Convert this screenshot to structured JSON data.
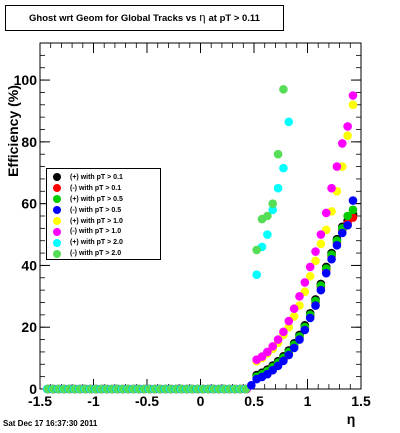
{
  "title": {
    "prefix": "Ghost wrt Geom for Global Tracks vs",
    "symbol": "η",
    "suffix": "at pT > 0.11"
  },
  "timestamp": "Sat Dec 17 16:37:30 2011",
  "chart_data": {
    "type": "scatter",
    "xlabel": "η",
    "ylabel": "Efficiency (%)",
    "xlim": [
      -1.5,
      1.5
    ],
    "ylim": [
      0,
      112
    ],
    "x_ticks": [
      -1.5,
      -1,
      -0.5,
      0,
      0.5,
      1,
      1.5
    ],
    "x_tick_labels": [
      "-1.5",
      "-1",
      "-0.5",
      "0",
      "0.5",
      "1",
      "1.5"
    ],
    "y_ticks": [
      0,
      20,
      40,
      60,
      80,
      100
    ],
    "y_tick_labels": [
      "0",
      "20",
      "40",
      "60",
      "80",
      "100"
    ],
    "legend_position": "left",
    "series": [
      {
        "name": "(+) with pT > 0.1",
        "color": "#000000",
        "points": [
          [
            0.525,
            4.5
          ],
          [
            0.575,
            5.3
          ],
          [
            0.625,
            6.3
          ],
          [
            0.675,
            7.6
          ],
          [
            0.725,
            9.0
          ],
          [
            0.775,
            10.6
          ],
          [
            0.825,
            12.5
          ],
          [
            0.875,
            14.8
          ],
          [
            0.925,
            17.5
          ],
          [
            0.975,
            20.6
          ],
          [
            1.025,
            24.5
          ],
          [
            1.075,
            29.0
          ],
          [
            1.125,
            34.0
          ],
          [
            1.175,
            39.5
          ],
          [
            1.225,
            44.0
          ],
          [
            1.275,
            48.5
          ],
          [
            1.325,
            52.5
          ],
          [
            1.375,
            54.5
          ],
          [
            1.425,
            56.5
          ]
        ]
      },
      {
        "name": "(-) with pT > 0.1",
        "color": "#ff0000",
        "points": [
          [
            0.525,
            3.6
          ],
          [
            0.575,
            4.4
          ],
          [
            0.625,
            5.3
          ],
          [
            0.675,
            6.6
          ],
          [
            0.725,
            8.0
          ],
          [
            0.775,
            9.6
          ],
          [
            0.825,
            11.6
          ],
          [
            0.875,
            13.8
          ],
          [
            0.925,
            16.5
          ],
          [
            0.975,
            19.6
          ],
          [
            1.025,
            23.5
          ],
          [
            1.075,
            28.0
          ],
          [
            1.125,
            33.0
          ],
          [
            1.175,
            38.5
          ],
          [
            1.225,
            43.0
          ],
          [
            1.275,
            47.5
          ],
          [
            1.325,
            51.5
          ],
          [
            1.375,
            53.5
          ],
          [
            1.425,
            55.5
          ]
        ]
      },
      {
        "name": "(+) with pT > 0.5",
        "color": "#00cc00",
        "points": [
          [
            0.525,
            4.0
          ],
          [
            0.575,
            4.8
          ],
          [
            0.625,
            5.8
          ],
          [
            0.675,
            7.1
          ],
          [
            0.725,
            8.5
          ],
          [
            0.775,
            10.1
          ],
          [
            0.825,
            12.0
          ],
          [
            0.875,
            14.3
          ],
          [
            0.925,
            17.0
          ],
          [
            0.975,
            20.1
          ],
          [
            1.025,
            24.0
          ],
          [
            1.075,
            28.5
          ],
          [
            1.125,
            33.5
          ],
          [
            1.175,
            39.0
          ],
          [
            1.225,
            43.5
          ],
          [
            1.275,
            48.0
          ],
          [
            1.325,
            52.0
          ],
          [
            1.375,
            56.0
          ],
          [
            1.425,
            58.0
          ]
        ]
      },
      {
        "name": "(-) with pT > 0.5",
        "color": "#0000ff",
        "points": [
          [
            0.475,
            1.2
          ],
          [
            0.525,
            3.2
          ],
          [
            0.575,
            3.9
          ],
          [
            0.625,
            4.8
          ],
          [
            0.675,
            6.1
          ],
          [
            0.725,
            7.5
          ],
          [
            0.775,
            9.1
          ],
          [
            0.825,
            11.0
          ],
          [
            0.875,
            13.3
          ],
          [
            0.925,
            16.0
          ],
          [
            0.975,
            19.1
          ],
          [
            1.025,
            23.0
          ],
          [
            1.075,
            27.0
          ],
          [
            1.125,
            32.0
          ],
          [
            1.175,
            37.5
          ],
          [
            1.225,
            42.0
          ],
          [
            1.275,
            46.5
          ],
          [
            1.325,
            50.5
          ],
          [
            1.375,
            53.0
          ],
          [
            1.425,
            61.0
          ]
        ]
      },
      {
        "name": "(+) with pT > 1.0",
        "color": "#ffff00",
        "points": [
          [
            0.525,
            9.0
          ],
          [
            0.575,
            10.0
          ],
          [
            0.625,
            11.5
          ],
          [
            0.675,
            13.0
          ],
          [
            0.725,
            15.0
          ],
          [
            0.775,
            17.5
          ],
          [
            0.825,
            20.0
          ],
          [
            0.875,
            23.5
          ],
          [
            0.925,
            27.0
          ],
          [
            0.975,
            31.5
          ],
          [
            1.025,
            36.5
          ],
          [
            1.075,
            41.5
          ],
          [
            1.125,
            47.0
          ],
          [
            1.175,
            51.5
          ],
          [
            1.225,
            57.5
          ],
          [
            1.275,
            64.0
          ],
          [
            1.325,
            72.0
          ],
          [
            1.375,
            82.0
          ],
          [
            1.425,
            92.0
          ]
        ]
      },
      {
        "name": "(-) with pT > 1.0",
        "color": "#ff00ff",
        "points": [
          [
            0.525,
            9.5
          ],
          [
            0.575,
            10.5
          ],
          [
            0.625,
            12.0
          ],
          [
            0.675,
            13.8
          ],
          [
            0.725,
            16.0
          ],
          [
            0.775,
            18.5
          ],
          [
            0.825,
            22.0
          ],
          [
            0.875,
            26.0
          ],
          [
            0.925,
            30.0
          ],
          [
            0.975,
            34.5
          ],
          [
            1.025,
            39.5
          ],
          [
            1.075,
            44.5
          ],
          [
            1.125,
            50.0
          ],
          [
            1.175,
            57.0
          ],
          [
            1.225,
            65.0
          ],
          [
            1.275,
            72.0
          ],
          [
            1.325,
            79.5
          ],
          [
            1.375,
            85.0
          ],
          [
            1.425,
            95.0
          ]
        ]
      },
      {
        "name": "(+) with pT > 2.0",
        "color": "#00ffff",
        "points": [
          [
            0.525,
            37.0
          ],
          [
            0.575,
            46.0
          ],
          [
            0.625,
            50.0
          ],
          [
            0.675,
            58.0
          ],
          [
            0.725,
            65.0
          ],
          [
            0.775,
            71.5
          ],
          [
            0.825,
            86.5
          ]
        ]
      },
      {
        "name": "(-) with pT > 2.0",
        "color": "#55dd55",
        "points": [
          [
            0.525,
            45.0
          ],
          [
            0.575,
            55.0
          ],
          [
            0.625,
            56.0
          ],
          [
            0.675,
            60.0
          ],
          [
            0.725,
            76.0
          ],
          [
            0.775,
            97.0
          ]
        ]
      }
    ],
    "zero_band": {
      "x": [
        -1.425,
        -1.375,
        -1.325,
        -1.275,
        -1.225,
        -1.175,
        -1.125,
        -1.075,
        -1.025,
        -0.975,
        -0.925,
        -0.875,
        -0.825,
        -0.775,
        -0.725,
        -0.675,
        -0.625,
        -0.575,
        -0.525,
        -0.475,
        -0.425,
        -0.375,
        -0.325,
        -0.275,
        -0.225,
        -0.175,
        -0.125,
        -0.075,
        -0.025,
        0.025,
        0.075,
        0.125,
        0.175,
        0.225,
        0.275,
        0.325,
        0.375,
        0.425
      ],
      "y": 0
    }
  }
}
